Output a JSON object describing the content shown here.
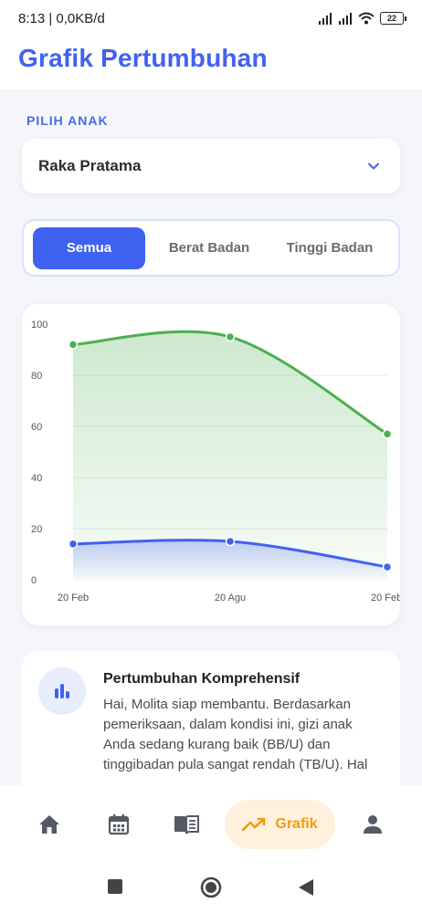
{
  "status_bar": {
    "time_speed": "8:13 | 0,0KB/d",
    "battery": "22"
  },
  "header": {
    "title": "Grafik Pertumbuhan"
  },
  "child_section": {
    "label": "PILIH ANAK",
    "selected_child": "Raka Pratama"
  },
  "tabs": [
    {
      "label": "Semua",
      "active": true
    },
    {
      "label": "Berat Badan",
      "active": false
    },
    {
      "label": "Tinggi Badan",
      "active": false
    }
  ],
  "chart_data": {
    "type": "area",
    "x": [
      "20 Feb",
      "20 Agu",
      "20 Feb"
    ],
    "y_ticks": [
      "100",
      "80",
      "60",
      "40",
      "20",
      "0"
    ],
    "ylim": [
      0,
      100
    ],
    "grid": true,
    "series": [
      {
        "values": [
          92,
          95,
          57
        ],
        "color": "#4caf50"
      },
      {
        "values": [
          14,
          15,
          5
        ],
        "color": "#4062f0"
      }
    ]
  },
  "info_card": {
    "icon": "bar-chart-icon",
    "title": "Pertumbuhan Komprehensif",
    "text": "Hai, Molita siap membantu. Berdasarkan pemeriksaan, dalam kondisi ini, gizi anak Anda sedang kurang baik (BB/U) dan tinggibadan pula sangat rendah (TB/U). Hal"
  },
  "bottom_nav": {
    "items": [
      {
        "icon": "home-icon"
      },
      {
        "icon": "calendar-icon"
      },
      {
        "icon": "book-icon"
      },
      {
        "icon": "trending-up-icon",
        "label": "Grafik",
        "active": true
      },
      {
        "icon": "person-icon"
      }
    ]
  },
  "colors": {
    "primary": "#4062f0",
    "accent": "#f39a10",
    "green": "#4caf50"
  }
}
